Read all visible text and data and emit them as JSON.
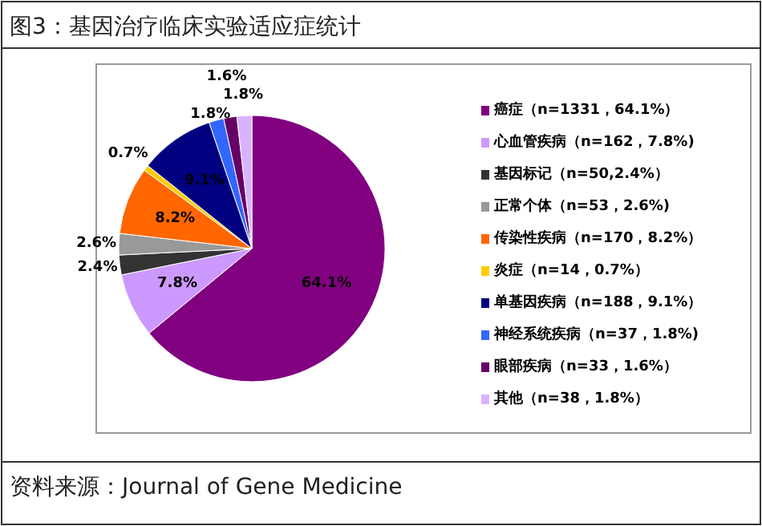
{
  "chart_data": {
    "type": "pie",
    "title": "图3：基因治疗临床实验适应症统计",
    "categories": [
      "癌症（n=1331，64.1%）",
      "心血管疾病（n=162，7.8%)",
      "基因标记（n=50,2.4%）",
      "正常个体（n=53，2.6%)",
      "传染性疾病（n=170，8.2%）",
      "炎症（n=14，0.7%）",
      "单基因疾病（n=188，9.1%）",
      "神经系统疾病（n=37，1.8%)",
      "眼部疾病（n=33，1.6%）",
      "其他（n=38，1.8%）"
    ],
    "values": [
      64.1,
      7.8,
      2.4,
      2.6,
      8.2,
      0.7,
      9.1,
      1.8,
      1.6,
      1.8
    ],
    "colors": [
      "#800080",
      "#cc99ff",
      "#333333",
      "#999999",
      "#ff6600",
      "#ffcc00",
      "#000080",
      "#3366ff",
      "#660066",
      "#d9b3ff"
    ],
    "value_labels": [
      "64.1%",
      "7.8%",
      "2.4%",
      "2.6%",
      "8.2%",
      "0.7%",
      "9.1%",
      "1.8%",
      "1.6%",
      "1.8%"
    ],
    "legend": "right",
    "annotations": [
      "资料来源：Journal of Gene Medicine"
    ]
  }
}
